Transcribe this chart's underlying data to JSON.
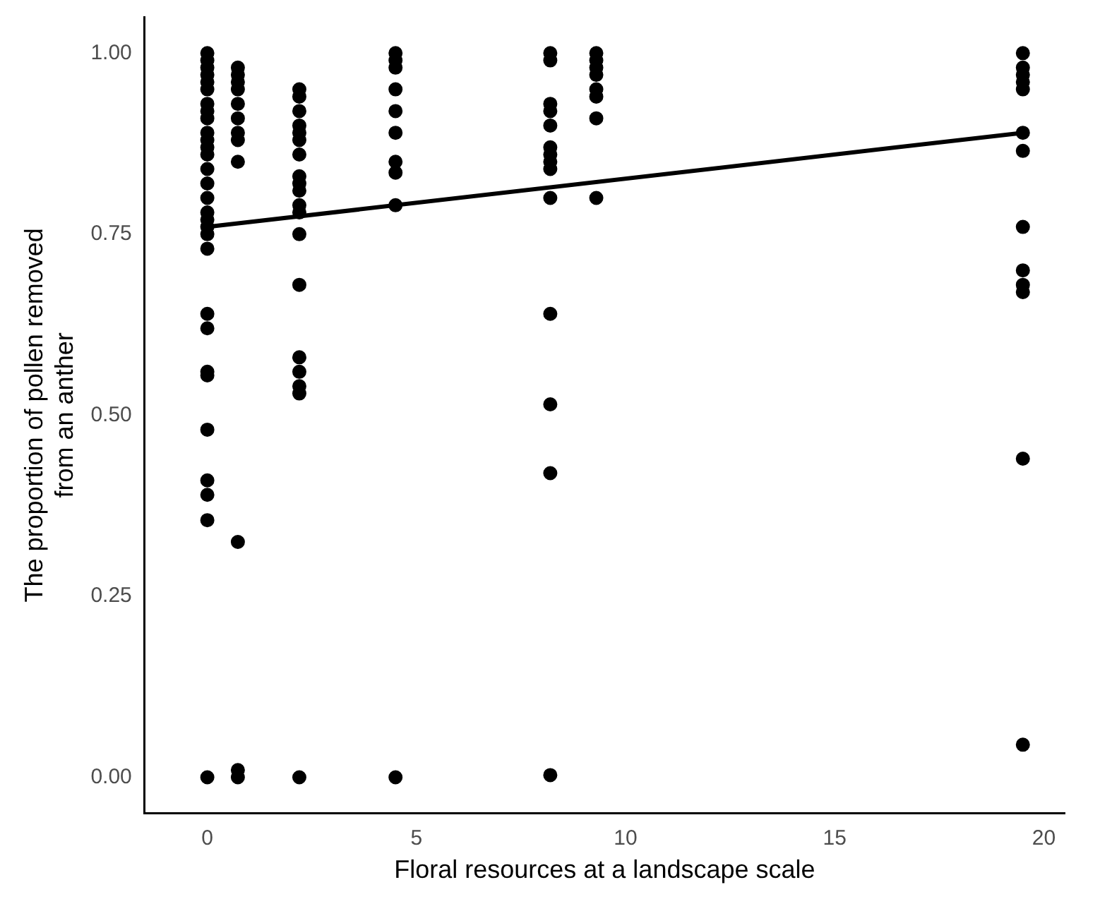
{
  "chart_data": {
    "type": "scatter",
    "xlabel": "Floral resources at a landscape scale",
    "ylabel": "The proportion of pollen removed\nfrom an anther",
    "xlim": [
      -1.5,
      20.5
    ],
    "xticks": [
      0,
      5,
      10,
      15,
      20
    ],
    "ylim": [
      -0.05,
      1.05
    ],
    "yticks": [
      {
        "value": 0,
        "label": "0.00"
      },
      {
        "value": 0.25,
        "label": "0.25"
      },
      {
        "value": 0.5,
        "label": "0.50"
      },
      {
        "value": 0.75,
        "label": "0.75"
      },
      {
        "value": 1,
        "label": "1.00"
      }
    ],
    "grid": false,
    "legend": false,
    "marker": "circle",
    "series": [
      {
        "color": "#000000",
        "x": [
          0,
          0,
          0,
          0,
          0,
          0,
          0,
          0,
          0,
          0,
          0,
          0,
          0,
          0,
          0,
          0,
          0,
          0,
          0,
          0,
          0,
          0,
          0,
          0,
          0,
          0,
          0,
          0,
          0,
          0,
          0.73,
          0.73,
          0.73,
          0.73,
          0.73,
          0.73,
          0.73,
          0.73,
          0.73,
          0.73,
          0.73,
          0.73,
          2.2,
          2.2,
          2.2,
          2.2,
          2.2,
          2.2,
          2.2,
          2.2,
          2.2,
          2.2,
          2.2,
          2.2,
          2.2,
          2.2,
          2.2,
          2.2,
          2.2,
          2.2,
          2.2,
          4.5,
          4.5,
          4.5,
          4.5,
          4.5,
          4.5,
          4.5,
          4.5,
          4.5,
          4.5,
          8.2,
          8.2,
          8.2,
          8.2,
          8.2,
          8.2,
          8.2,
          8.2,
          8.2,
          8.2,
          8.2,
          8.2,
          8.2,
          8.2,
          9.3,
          9.3,
          9.3,
          9.3,
          9.3,
          9.3,
          9.3,
          9.3,
          19.5,
          19.5,
          19.5,
          19.5,
          19.5,
          19.5,
          19.5,
          19.5,
          19.5,
          19.5,
          19.5,
          19.5,
          19.5
        ],
        "values": [
          1.0,
          0.99,
          0.98,
          0.97,
          0.96,
          0.95,
          0.93,
          0.92,
          0.91,
          0.89,
          0.88,
          0.87,
          0.86,
          0.84,
          0.82,
          0.8,
          0.78,
          0.77,
          0.76,
          0.75,
          0.73,
          0.64,
          0.62,
          0.56,
          0.555,
          0.48,
          0.41,
          0.39,
          0.355,
          0.0,
          0.98,
          0.97,
          0.96,
          0.95,
          0.93,
          0.91,
          0.89,
          0.88,
          0.85,
          0.325,
          0.01,
          0.0,
          0.95,
          0.94,
          0.92,
          0.9,
          0.89,
          0.88,
          0.86,
          0.83,
          0.82,
          0.81,
          0.79,
          0.78,
          0.75,
          0.68,
          0.58,
          0.56,
          0.54,
          0.53,
          0.0,
          1.0,
          0.99,
          0.98,
          0.95,
          0.92,
          0.89,
          0.85,
          0.835,
          0.79,
          0.0,
          1.0,
          0.99,
          0.93,
          0.92,
          0.9,
          0.87,
          0.86,
          0.85,
          0.84,
          0.8,
          0.64,
          0.515,
          0.42,
          0.003,
          1.0,
          0.99,
          0.98,
          0.97,
          0.95,
          0.94,
          0.91,
          0.8,
          1.0,
          0.98,
          0.97,
          0.96,
          0.95,
          0.89,
          0.865,
          0.76,
          0.7,
          0.68,
          0.67,
          0.44,
          0.045
        ]
      },
      {
        "type": "line",
        "color": "#000000",
        "marker": "none",
        "x": [
          0,
          19.5
        ],
        "values": [
          0.76,
          0.89
        ]
      }
    ]
  }
}
